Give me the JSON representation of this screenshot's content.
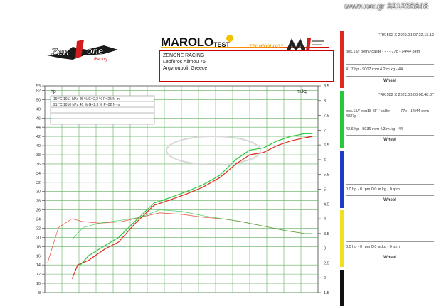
{
  "watermark": "www.car.gr 321255848",
  "brand": {
    "zenone_logo": "Zen1one Racing",
    "marolo_logo": "MAROLO",
    "marolo_sub": "TEST",
    "technology": "TECHNOLOGY",
    "mi_logo": "Mi SYSTEMS"
  },
  "client": {
    "name": "ZENONE RACING",
    "address": "Leoforos Alimou 76",
    "city": "Argyroupoli, Greece"
  },
  "conditions": [
    "19 °C   1011 hPa   45 %   G=2,2 %   P=25 N·m",
    "21 °C   1010 hPa   40 %   G=2,3 %   P=22 N·m"
  ],
  "panels": [
    {
      "color": "#e0281d",
      "header": "TRK 502 X   2022.03.07 22.13.12",
      "desc": "pos.15// oem / calibr - - - - 77c - 14/44 oem",
      "desc2": "",
      "result": "41.7 hp - 9007 rpm        4.2 m.kg - 44",
      "wheel": "Wheel"
    },
    {
      "color": "#28c83a",
      "header": "TRK 502 X   2022.03.08 00.48.37",
      "desc": "pos.15// ecu18-6F / calibr - - - - 77c - 14/44 oem",
      "desc2": "4827p",
      "result": "42.6 hp - 8936 rpm        4.3 m.kg - 44",
      "wheel": "Wheel"
    },
    {
      "color": "#1e3cc8",
      "header": "",
      "desc": "",
      "desc2": "",
      "result": "0.0 hp - 0 rpm        0.0 m.kg - 0 rpm",
      "wheel": "Wheel"
    },
    {
      "color": "#f0e020",
      "header": "",
      "desc": "",
      "desc2": "",
      "result": "0.0 hp - 0 rpm        0.0 m.kg - 0 rpm",
      "wheel": "Wheel"
    },
    {
      "color": "#111111",
      "header": "",
      "desc": "",
      "desc2": "",
      "result": "",
      "wheel": ""
    }
  ],
  "chart_data": {
    "type": "line",
    "title": "",
    "ylabel_left": "hp",
    "ylabel_right": "m.kg",
    "ylim_left": [
      8,
      53
    ],
    "ylim_right": [
      1.5,
      8.5
    ],
    "x_ticks_visible": false,
    "grid": true,
    "left_ticks": [
      8,
      10,
      12,
      14,
      16,
      18,
      20,
      22,
      24,
      26,
      28,
      30,
      32,
      34,
      36,
      38,
      40,
      42,
      44,
      46,
      48,
      50,
      52,
      53
    ],
    "right_ticks": [
      1.5,
      2,
      2.5,
      3,
      3.5,
      4,
      4.5,
      5,
      5.5,
      6,
      6.5,
      7,
      7.5,
      8,
      8.5
    ],
    "series": [
      {
        "metric": "hp",
        "run": 1,
        "color": "#e0281d",
        "axis": "left",
        "x": [
          0.1,
          0.12,
          0.16,
          0.22,
          0.27,
          0.33,
          0.4,
          0.45,
          0.52,
          0.58,
          0.64,
          0.7,
          0.75,
          0.8,
          0.85,
          0.9,
          0.95,
          0.98
        ],
        "y": [
          11,
          14,
          15,
          17.5,
          19,
          23,
          27,
          28,
          29.5,
          31,
          33,
          36,
          38,
          38.5,
          40,
          41,
          41.7,
          42
        ]
      },
      {
        "metric": "hp",
        "run": 2,
        "color": "#28c83a",
        "axis": "left",
        "x": [
          0.13,
          0.16,
          0.2,
          0.27,
          0.33,
          0.4,
          0.45,
          0.52,
          0.58,
          0.64,
          0.7,
          0.75,
          0.8,
          0.85,
          0.9,
          0.95,
          0.98
        ],
        "y": [
          14,
          16,
          17.5,
          20,
          23.5,
          27.5,
          28.5,
          30,
          31.5,
          33.5,
          37,
          39,
          39.5,
          41,
          42,
          42.6,
          42.6
        ]
      },
      {
        "metric": "torque",
        "run": 1,
        "color": "#e0281d",
        "axis": "right",
        "x": [
          0.01,
          0.05,
          0.1,
          0.14,
          0.2,
          0.28,
          0.35,
          0.42,
          0.5,
          0.58,
          0.65,
          0.72,
          0.8,
          0.88,
          0.95,
          0.98
        ],
        "y": [
          2.5,
          3.7,
          4.0,
          3.9,
          3.85,
          3.9,
          4.05,
          4.2,
          4.15,
          4.05,
          4.0,
          3.9,
          3.75,
          3.6,
          3.5,
          3.5
        ]
      },
      {
        "metric": "torque",
        "run": 2,
        "color": "#28c83a",
        "axis": "right",
        "x": [
          0.1,
          0.14,
          0.2,
          0.28,
          0.35,
          0.42,
          0.5,
          0.58,
          0.65,
          0.72,
          0.8,
          0.88,
          0.95,
          0.98
        ],
        "y": [
          3.3,
          3.7,
          3.85,
          3.95,
          4.05,
          4.3,
          4.25,
          4.1,
          4.0,
          3.9,
          3.75,
          3.6,
          3.5,
          3.5
        ]
      }
    ]
  }
}
